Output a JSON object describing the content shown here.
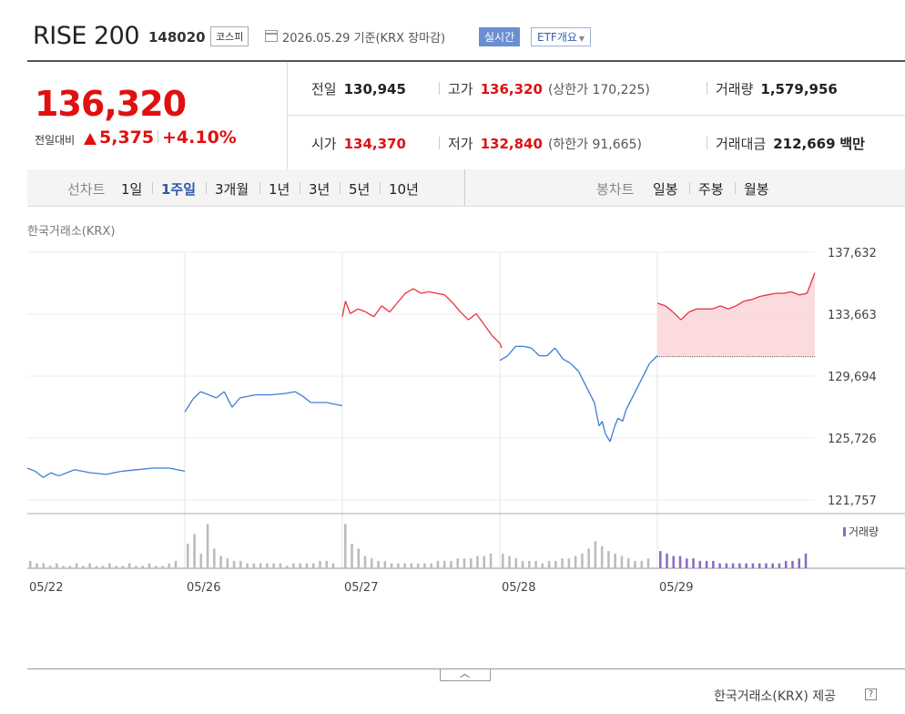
{
  "header": {
    "name": "RISE 200",
    "code": "148020",
    "market_badge": "코스피",
    "basis": "2026.05.29 기준(KRX 장마감)",
    "realtime_badge": "실시간",
    "etf_badge": "ETF개요"
  },
  "quote": {
    "price": "136,320",
    "change_label": "전일대비",
    "change": "5,375",
    "change_pct": "+4.10%",
    "prev_close_label": "전일",
    "prev_close": "130,945",
    "high_label": "고가",
    "high": "136,320",
    "upper_limit": "(상한가 170,225)",
    "volume_label": "거래량",
    "volume": "1,579,956",
    "open_label": "시가",
    "open": "134,370",
    "low_label": "저가",
    "low": "132,840",
    "lower_limit": "(하한가 91,665)",
    "amount_label": "거래대금",
    "amount": "212,669",
    "amount_unit": "백만"
  },
  "tabs": {
    "line_label": "선차트",
    "line_items": [
      "1일",
      "1주일",
      "3개월",
      "1년",
      "3년",
      "5년",
      "10년"
    ],
    "active_index": 1,
    "candle_label": "봉차트",
    "candle_items": [
      "일봉",
      "주봉",
      "월봉"
    ]
  },
  "chart_source": "한국거래소(KRX)",
  "volume_legend": "거래량",
  "provider": "한국거래소(KRX) 제공",
  "colors": {
    "up": "#e8323c",
    "down": "#3d7dd6",
    "volume": "#8a6bc8",
    "fill": "#fbd5d8"
  },
  "chart_data": {
    "type": "line",
    "x": [
      "05/22",
      "05/26",
      "05/27",
      "05/28",
      "05/29"
    ],
    "y_ticks": [
      "137,632",
      "133,663",
      "129,694",
      "125,726",
      "121,757"
    ],
    "ylim": [
      121757,
      137632
    ],
    "series": [
      {
        "day": "05/22",
        "points": [
          [
            0,
            123800
          ],
          [
            0.05,
            123600
          ],
          [
            0.1,
            123200
          ],
          [
            0.15,
            123500
          ],
          [
            0.2,
            123300
          ],
          [
            0.3,
            123700
          ],
          [
            0.4,
            123500
          ],
          [
            0.5,
            123400
          ],
          [
            0.6,
            123600
          ],
          [
            0.7,
            123700
          ],
          [
            0.8,
            123800
          ],
          [
            0.9,
            123800
          ],
          [
            1,
            123600
          ]
        ]
      },
      {
        "day": "05/26",
        "points": [
          [
            0,
            127400
          ],
          [
            0.05,
            128200
          ],
          [
            0.1,
            128700
          ],
          [
            0.15,
            128500
          ],
          [
            0.2,
            128300
          ],
          [
            0.25,
            128700
          ],
          [
            0.3,
            127700
          ],
          [
            0.35,
            128300
          ],
          [
            0.45,
            128500
          ],
          [
            0.55,
            128500
          ],
          [
            0.65,
            128600
          ],
          [
            0.7,
            128700
          ],
          [
            0.75,
            128400
          ],
          [
            0.8,
            128000
          ],
          [
            0.9,
            128000
          ],
          [
            1,
            127800
          ]
        ]
      },
      {
        "day": "05/27",
        "points": [
          [
            0,
            133500
          ],
          [
            0.02,
            134500
          ],
          [
            0.05,
            133700
          ],
          [
            0.1,
            134000
          ],
          [
            0.15,
            133800
          ],
          [
            0.2,
            133500
          ],
          [
            0.25,
            134200
          ],
          [
            0.3,
            133800
          ],
          [
            0.35,
            134400
          ],
          [
            0.4,
            135000
          ],
          [
            0.45,
            135300
          ],
          [
            0.5,
            135000
          ],
          [
            0.55,
            135100
          ],
          [
            0.6,
            135000
          ],
          [
            0.65,
            134900
          ],
          [
            0.7,
            134400
          ],
          [
            0.75,
            133800
          ],
          [
            0.8,
            133300
          ],
          [
            0.85,
            133700
          ],
          [
            0.9,
            133000
          ],
          [
            0.95,
            132300
          ],
          [
            1,
            131800
          ]
        ]
      },
      {
        "day": "05/28",
        "points": [
          [
            0,
            130700
          ],
          [
            0.05,
            131000
          ],
          [
            0.1,
            131600
          ],
          [
            0.15,
            131600
          ],
          [
            0.2,
            131500
          ],
          [
            0.25,
            131000
          ],
          [
            0.3,
            131000
          ],
          [
            0.35,
            131500
          ],
          [
            0.4,
            130800
          ],
          [
            0.45,
            130500
          ],
          [
            0.5,
            130000
          ],
          [
            0.55,
            129000
          ],
          [
            0.6,
            128000
          ],
          [
            0.63,
            126500
          ],
          [
            0.65,
            126800
          ],
          [
            0.67,
            126000
          ],
          [
            0.7,
            125500
          ],
          [
            0.73,
            126500
          ],
          [
            0.75,
            127000
          ],
          [
            0.78,
            126800
          ],
          [
            0.8,
            127500
          ],
          [
            0.85,
            128500
          ],
          [
            0.9,
            129500
          ],
          [
            0.95,
            130500
          ],
          [
            1,
            131000
          ]
        ]
      },
      {
        "day": "05/29",
        "points": [
          [
            0,
            134370
          ],
          [
            0.05,
            134200
          ],
          [
            0.1,
            133800
          ],
          [
            0.15,
            133300
          ],
          [
            0.2,
            133800
          ],
          [
            0.25,
            134000
          ],
          [
            0.3,
            134000
          ],
          [
            0.35,
            134000
          ],
          [
            0.4,
            134200
          ],
          [
            0.45,
            134000
          ],
          [
            0.5,
            134200
          ],
          [
            0.55,
            134500
          ],
          [
            0.6,
            134600
          ],
          [
            0.65,
            134800
          ],
          [
            0.7,
            134900
          ],
          [
            0.75,
            135000
          ],
          [
            0.8,
            135000
          ],
          [
            0.85,
            135100
          ],
          [
            0.9,
            134900
          ],
          [
            0.95,
            135000
          ],
          [
            1,
            136320
          ]
        ]
      }
    ],
    "prev_close_line": 130945,
    "volume": {
      "label": "거래량",
      "days": [
        {
          "day": "05/22",
          "bars": [
            3,
            2,
            2,
            1,
            2,
            1,
            1,
            2,
            1,
            2,
            1,
            1,
            2,
            1,
            1,
            2,
            1,
            1,
            2,
            1,
            1,
            2,
            3
          ]
        },
        {
          "day": "05/26",
          "bars": [
            10,
            14,
            6,
            18,
            8,
            5,
            4,
            3,
            3,
            2,
            2,
            2,
            2,
            2,
            2,
            1,
            2,
            2,
            2,
            2,
            3,
            3,
            2
          ]
        },
        {
          "day": "05/27",
          "bars": [
            18,
            10,
            8,
            5,
            4,
            3,
            3,
            2,
            2,
            2,
            2,
            2,
            2,
            2,
            3,
            3,
            3,
            4,
            4,
            4,
            5,
            5,
            6
          ]
        },
        {
          "day": "05/28",
          "bars": [
            6,
            5,
            4,
            3,
            3,
            3,
            2,
            3,
            3,
            4,
            4,
            5,
            6,
            8,
            11,
            9,
            7,
            6,
            5,
            4,
            3,
            3,
            4
          ]
        },
        {
          "day": "05/29",
          "bars": [
            7,
            6,
            5,
            5,
            4,
            4,
            3,
            3,
            3,
            2,
            2,
            2,
            2,
            2,
            2,
            2,
            2,
            2,
            2,
            3,
            3,
            4,
            6
          ]
        }
      ]
    }
  }
}
